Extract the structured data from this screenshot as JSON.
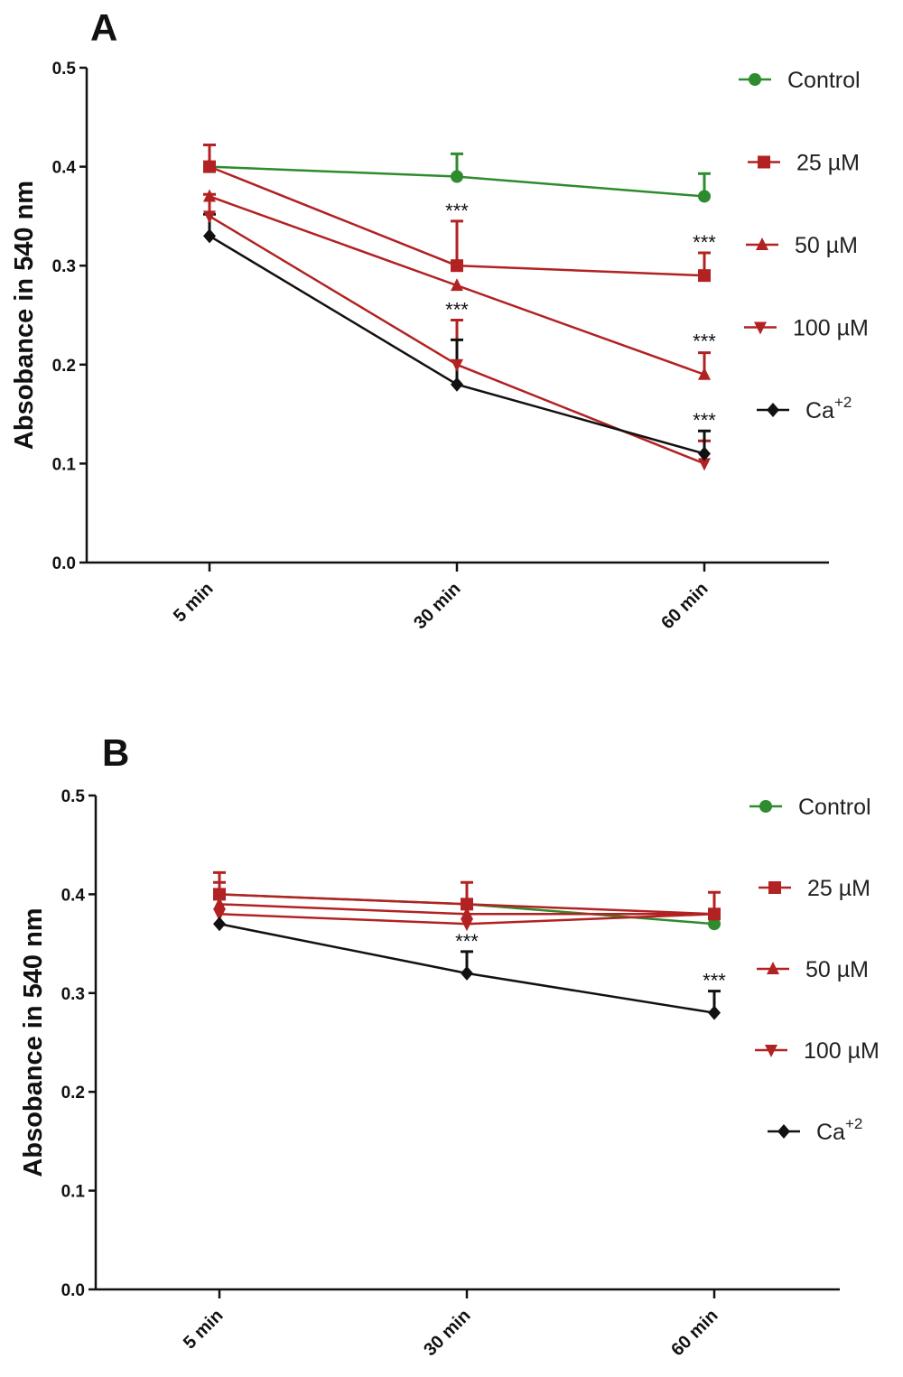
{
  "chart_data": [
    {
      "type": "line",
      "panel": "A",
      "ylabel": "Absobance in 540 nm",
      "xlabel": "",
      "categories": [
        "5 min",
        "30 min",
        "60 min"
      ],
      "ylim": [
        0.0,
        0.5
      ],
      "yticks": [
        "0.0",
        "0.1",
        "0.2",
        "0.3",
        "0.4",
        "0.5"
      ],
      "ytick_values": [
        0.0,
        0.1,
        0.2,
        0.3,
        0.4,
        0.5
      ],
      "grid": false,
      "legend_position": "right",
      "series": [
        {
          "name": "Control",
          "sup": "",
          "color": "#2e8b2e",
          "marker": "circle",
          "values": [
            0.4,
            0.39,
            0.37
          ],
          "err": [
            0.0,
            0.023,
            0.023
          ]
        },
        {
          "name": "25 µM",
          "sup": "",
          "color": "#b22222",
          "marker": "square",
          "values": [
            0.4,
            0.3,
            0.29
          ],
          "err": [
            0.022,
            0.045,
            0.023
          ]
        },
        {
          "name": "50 µM",
          "sup": "",
          "color": "#b22222",
          "marker": "triangle-up",
          "values": [
            0.37,
            0.28,
            0.19
          ],
          "err": [
            0.0,
            0.0,
            0.022
          ]
        },
        {
          "name": "100 µM",
          "sup": "",
          "color": "#b22222",
          "marker": "triangle-down",
          "values": [
            0.35,
            0.2,
            0.1
          ],
          "err": [
            0.022,
            0.045,
            0.023
          ]
        },
        {
          "name": "Ca",
          "sup": "+2",
          "color": "#111111",
          "marker": "diamond",
          "values": [
            0.33,
            0.18,
            0.11
          ],
          "err": [
            0.022,
            0.045,
            0.023
          ]
        }
      ],
      "annotations": [
        {
          "text": "***",
          "x": "30 min",
          "y": 0.345
        },
        {
          "text": "***",
          "x": "30 min",
          "y": 0.245
        },
        {
          "text": "***",
          "x": "60 min",
          "y": 0.313
        },
        {
          "text": "***",
          "x": "60 min",
          "y": 0.213
        },
        {
          "text": "***",
          "x": "60 min",
          "y": 0.133
        }
      ]
    },
    {
      "type": "line",
      "panel": "B",
      "ylabel": "Absobance in 540 nm",
      "xlabel": "",
      "categories": [
        "5 min",
        "30 min",
        "60 min"
      ],
      "ylim": [
        0.0,
        0.5
      ],
      "yticks": [
        "0.0",
        "0.1",
        "0.2",
        "0.3",
        "0.4",
        "0.5"
      ],
      "ytick_values": [
        0.0,
        0.1,
        0.2,
        0.3,
        0.4,
        0.5
      ],
      "grid": false,
      "legend_position": "right",
      "series": [
        {
          "name": "Control",
          "sup": "",
          "color": "#2e8b2e",
          "marker": "circle",
          "values": [
            0.4,
            0.39,
            0.37
          ],
          "err": [
            0.0,
            0.0,
            0.0
          ]
        },
        {
          "name": "25 µM",
          "sup": "",
          "color": "#b22222",
          "marker": "square",
          "values": [
            0.4,
            0.39,
            0.38
          ],
          "err": [
            0.022,
            0.022,
            0.0
          ]
        },
        {
          "name": "50 µM",
          "sup": "",
          "color": "#b22222",
          "marker": "triangle-up",
          "values": [
            0.39,
            0.38,
            0.38
          ],
          "err": [
            0.022,
            0.0,
            0.0
          ]
        },
        {
          "name": "100 µM",
          "sup": "",
          "color": "#b22222",
          "marker": "triangle-down",
          "values": [
            0.38,
            0.37,
            0.38
          ],
          "err": [
            0.0,
            0.0,
            0.022
          ]
        },
        {
          "name": "Ca",
          "sup": "+2",
          "color": "#111111",
          "marker": "diamond",
          "values": [
            0.37,
            0.32,
            0.28
          ],
          "err": [
            0.0,
            0.022,
            0.022
          ]
        }
      ],
      "annotations": [
        {
          "text": "***",
          "x": "30 min",
          "y": 0.342
        },
        {
          "text": "***",
          "x": "60 min",
          "y": 0.302
        }
      ]
    }
  ]
}
